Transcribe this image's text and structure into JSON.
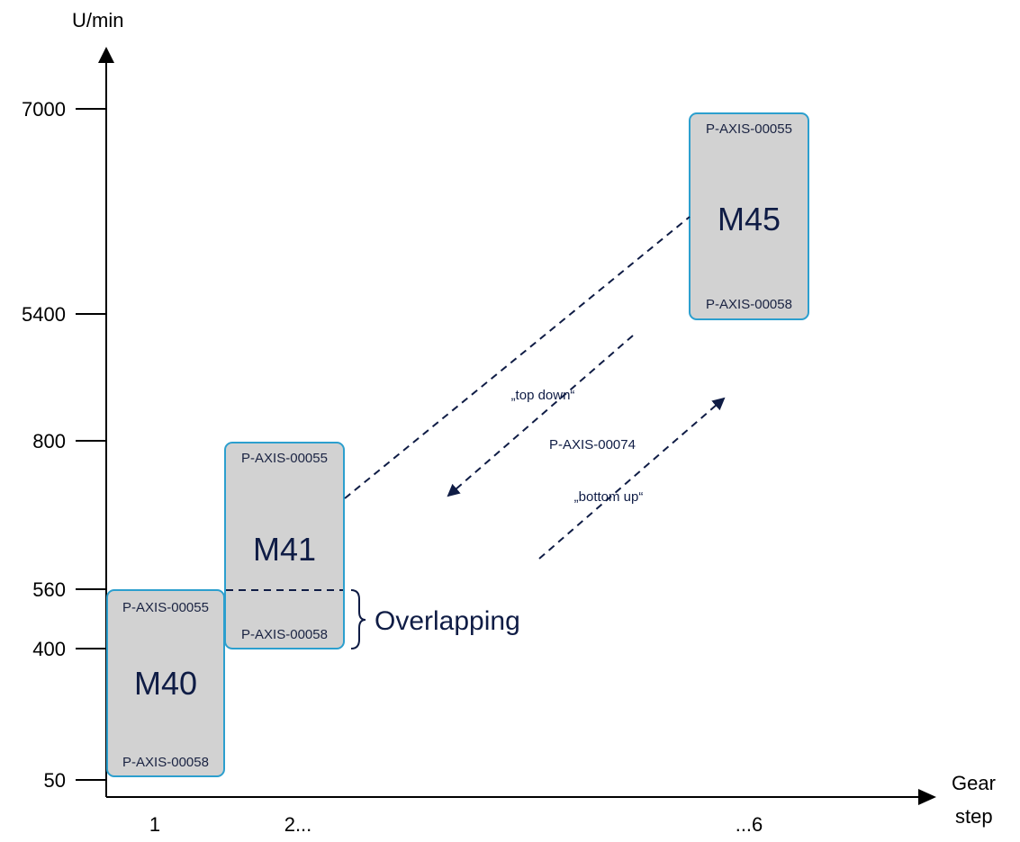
{
  "axes": {
    "y_title": "U/min",
    "x_title_line1": "Gear",
    "x_title_line2": "step",
    "y_ticks": [
      "7000",
      "5400",
      "800",
      "560",
      "400",
      "50"
    ],
    "x_ticks": [
      "1",
      "2...",
      "...6"
    ]
  },
  "boxes": [
    {
      "code": "M40",
      "top_param": "P-AXIS-00055",
      "bottom_param": "P-AXIS-00058"
    },
    {
      "code": "M41",
      "top_param": "P-AXIS-00055",
      "bottom_param": "P-AXIS-00058"
    },
    {
      "code": "M45",
      "top_param": "P-AXIS-00055",
      "bottom_param": "P-AXIS-00058"
    }
  ],
  "labels": {
    "overlapping": "Overlapping",
    "top_down": "„top down“",
    "bottom_up": "„bottom up“",
    "switch_param": "P-AXIS-00074"
  },
  "colors": {
    "box_fill": "#d2d2d2",
    "box_border": "#2c9fce",
    "dark_navy": "#0f1c45"
  }
}
